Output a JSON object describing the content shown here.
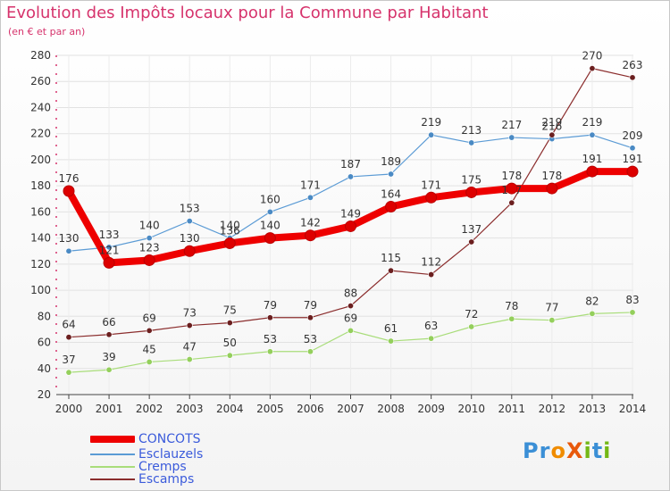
{
  "title": "Evolution des Impôts locaux pour la Commune par Habitant",
  "subtitle": "(en € et par an)",
  "logo": {
    "text": "ProXiti",
    "letters": [
      "P",
      "r",
      "o",
      "X",
      "i",
      "t",
      "i"
    ],
    "colors": [
      "#3b8fd6",
      "#3b8fd6",
      "#f08c00",
      "#e8590c",
      "#74b816",
      "#3b8fd6",
      "#74b816"
    ]
  },
  "chart_data": {
    "type": "line",
    "categories": [
      "2000",
      "2001",
      "2002",
      "2003",
      "2004",
      "2005",
      "2006",
      "2007",
      "2008",
      "2009",
      "2010",
      "2011",
      "2012",
      "2013",
      "2014"
    ],
    "ylim": [
      20,
      280
    ],
    "yticks": [
      20,
      40,
      60,
      80,
      100,
      120,
      140,
      160,
      180,
      200,
      220,
      240,
      260,
      280
    ],
    "grid": true,
    "series": [
      {
        "name": "Esclauzels",
        "color": "#5b9bd5",
        "dot": "#4a8ac4",
        "width": 1.2,
        "values": [
          130,
          133,
          140,
          153,
          140,
          160,
          171,
          187,
          189,
          219,
          213,
          217,
          216,
          219,
          209
        ],
        "labels": [
          "130",
          "133",
          "140",
          "153",
          "140",
          "160",
          "171",
          "187",
          "189",
          "219",
          "213",
          "217",
          "216",
          "219",
          "209"
        ]
      },
      {
        "name": "Cremps",
        "color": "#a9dd7a",
        "dot": "#94cf5c",
        "width": 1.2,
        "values": [
          37,
          39,
          45,
          47,
          50,
          53,
          53,
          69,
          61,
          63,
          72,
          78,
          77,
          82,
          83
        ],
        "labels": [
          "37",
          "39",
          "45",
          "47",
          "50",
          "53",
          "53",
          "69",
          "61",
          "63",
          "72",
          "78",
          "77",
          "82",
          "83"
        ]
      },
      {
        "name": "Escamps",
        "color": "#8b2d2d",
        "dot": "#6b1f1f",
        "width": 1.2,
        "values": [
          64,
          66,
          69,
          73,
          75,
          79,
          79,
          88,
          115,
          112,
          137,
          167,
          219,
          270,
          263
        ],
        "labels": [
          "64",
          "66",
          "69",
          "73",
          "75",
          "79",
          "79",
          "88",
          "115",
          "112",
          "137",
          "167",
          "219",
          "270",
          "263"
        ]
      },
      {
        "name": "CONCOTS",
        "color": "#ee0000",
        "dot": "#dd0000",
        "width": 8,
        "values": [
          176,
          121,
          123,
          130,
          136,
          140,
          142,
          149,
          164,
          171,
          175,
          178,
          178,
          191,
          191
        ],
        "labels": [
          "176",
          "121",
          "123",
          "130",
          "136",
          "140",
          "142",
          "149",
          "164",
          "171",
          "175",
          "178",
          "178",
          "191",
          "191"
        ]
      }
    ],
    "legend": [
      "CONCOTS",
      "Esclauzels",
      "Cremps",
      "Escamps"
    ]
  }
}
